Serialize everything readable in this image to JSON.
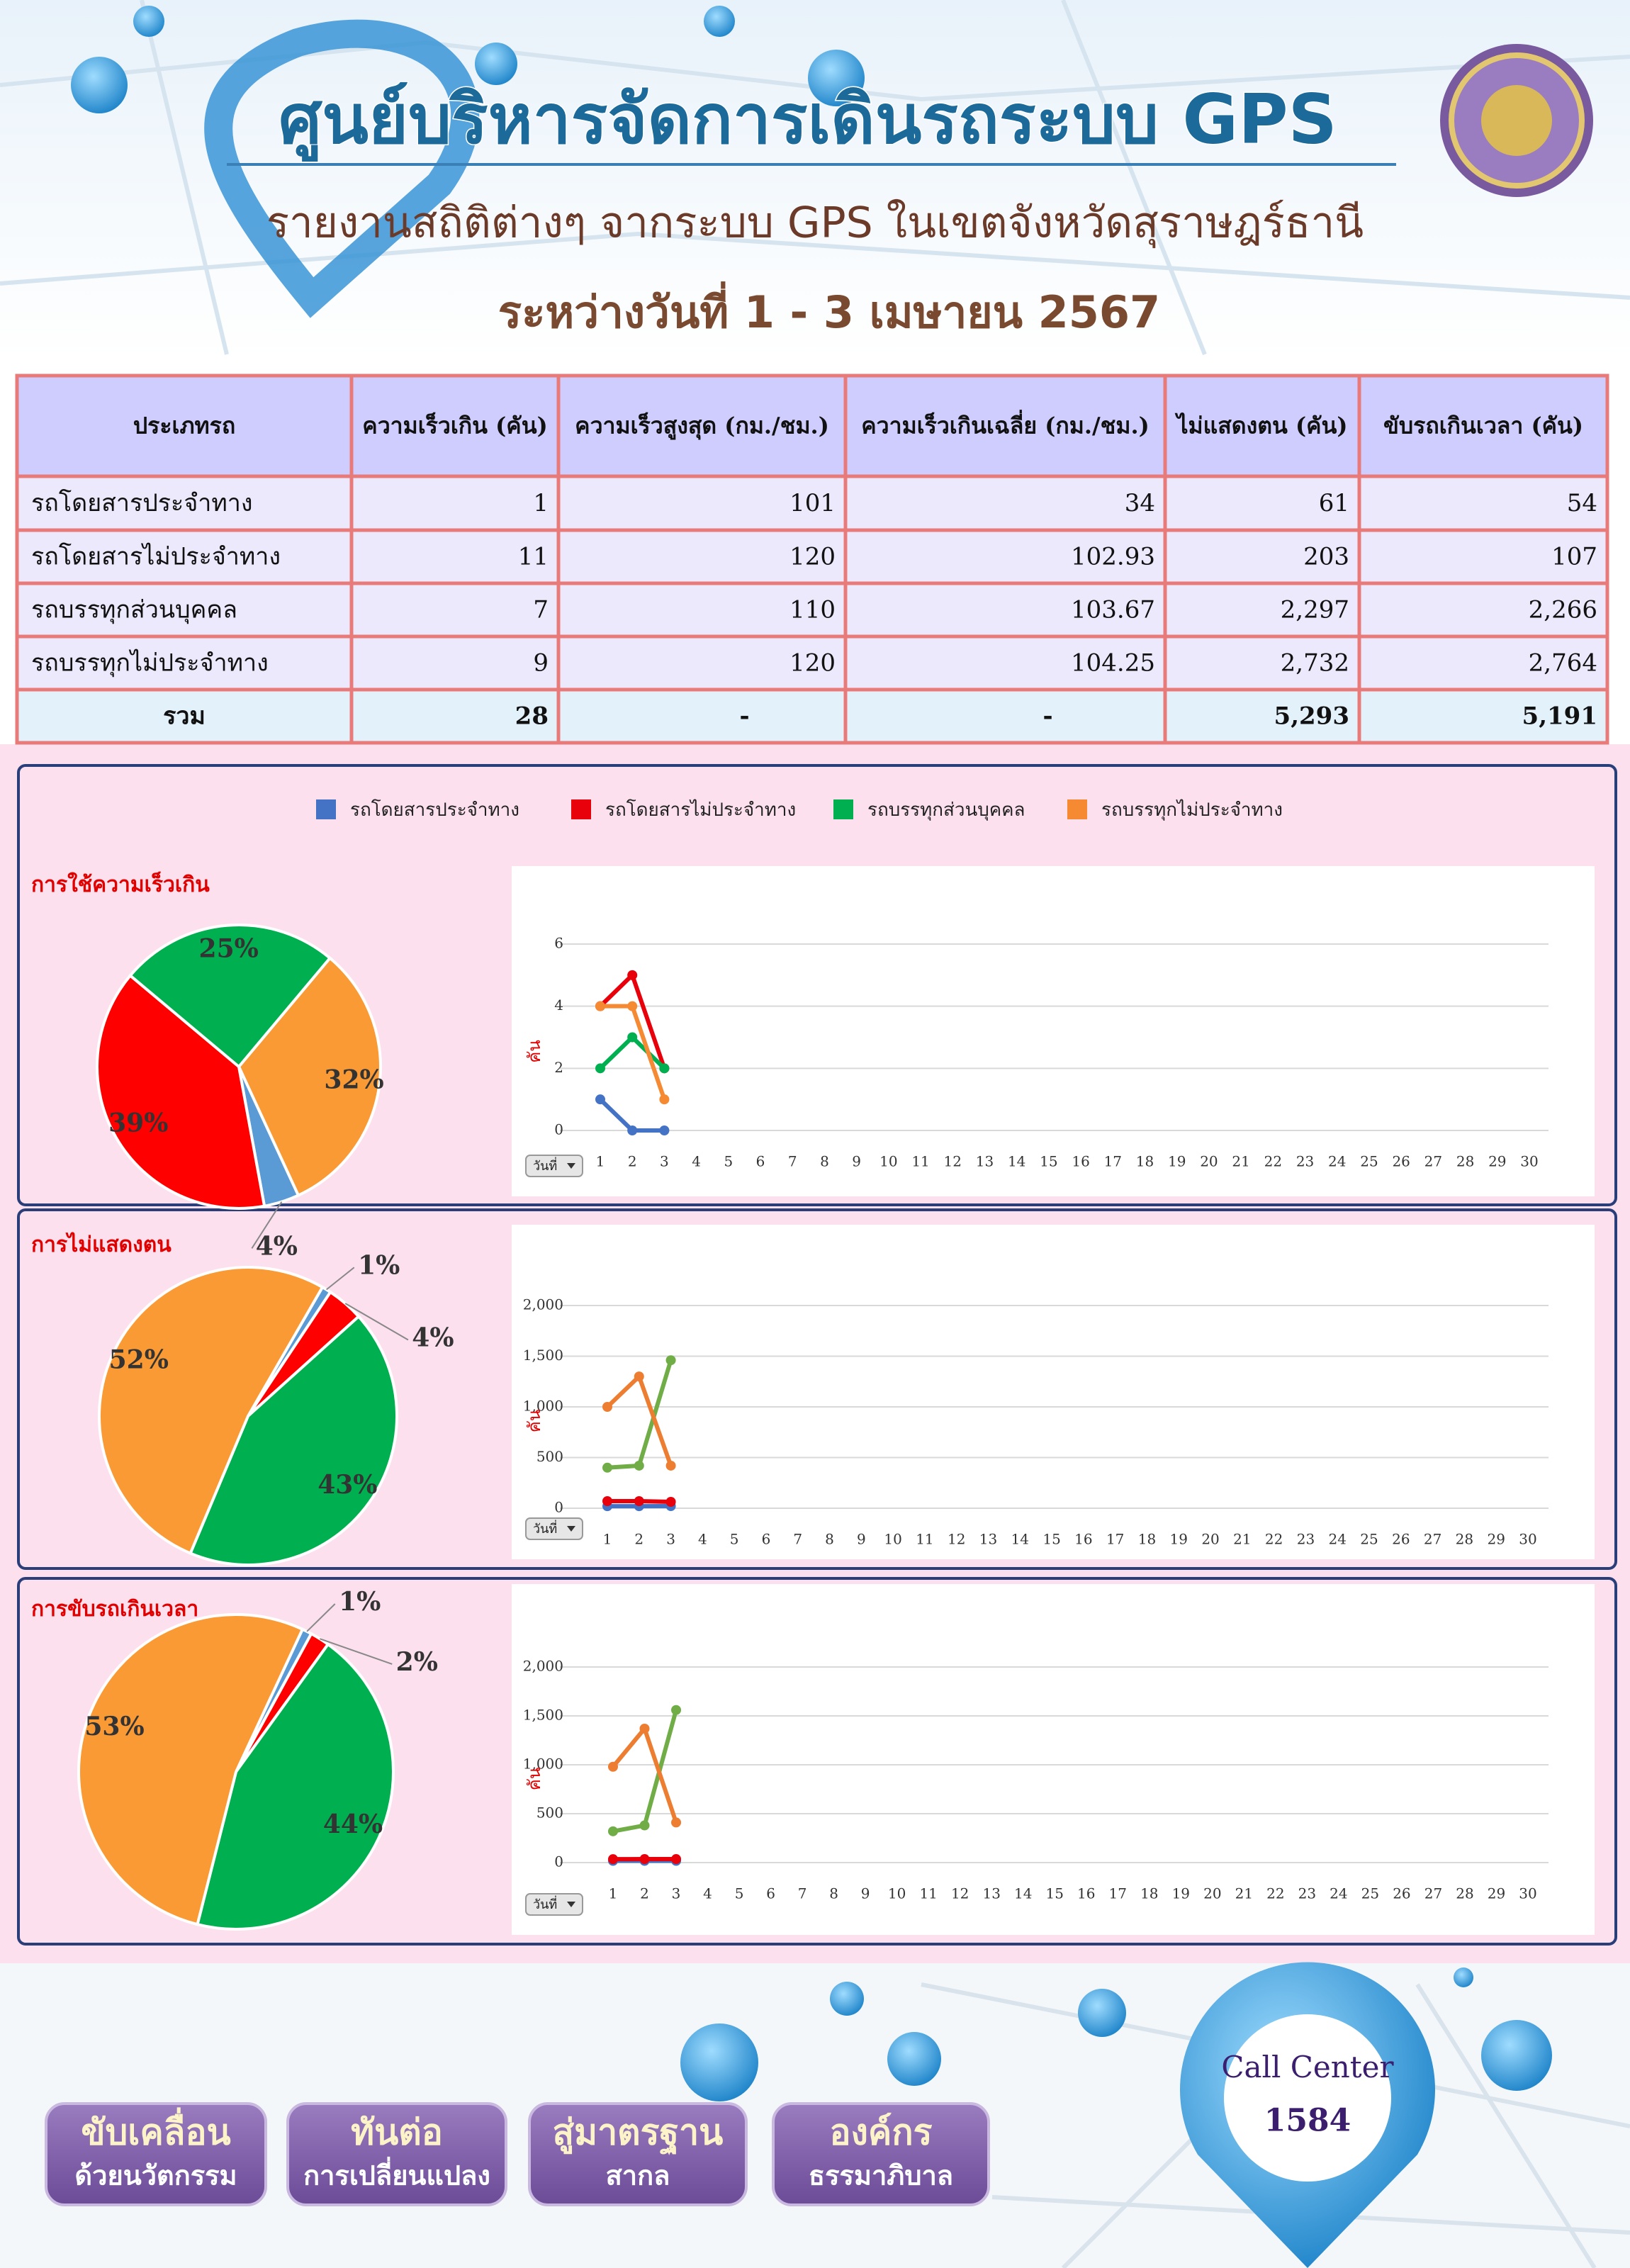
{
  "header": {
    "title": "ศูนย์บริหารจัดการเดินรถระบบ GPS",
    "subtitle": "รายงานสถิติต่างๆ จากระบบ GPS ในเขตจังหวัดสุราษฎร์ธานี",
    "date_range": "ระหว่างวันที่ 1 - 3 เมษายน 2567"
  },
  "table": {
    "columns": [
      "ประเภทรถ",
      "ความเร็วเกิน (คัน)",
      "ความเร็วสูงสุด (กม./ชม.)",
      "ความเร็วเกินเฉลี่ย (กม./ชม.)",
      "ไม่แสดงตน (คัน)",
      "ขับรถเกินเวลา (คัน)"
    ],
    "rows": [
      [
        "รถโดยสารประจำทาง",
        "1",
        "101",
        "34",
        "61",
        "54"
      ],
      [
        "รถโดยสารไม่ประจำทาง",
        "11",
        "120",
        "102.93",
        "203",
        "107"
      ],
      [
        "รถบรรทุกส่วนบุคคล",
        "7",
        "110",
        "103.67",
        "2,297",
        "2,266"
      ],
      [
        "รถบรรทุกไม่ประจำทาง",
        "9",
        "120",
        "104.25",
        "2,732",
        "2,764"
      ]
    ],
    "total": [
      "รวม",
      "28",
      "-",
      "-",
      "5,293",
      "5,191"
    ]
  },
  "chart_data": [
    {
      "type": "pie",
      "title": "การใช้ความเร็วเกิน",
      "values": [
        4,
        39,
        25,
        32
      ],
      "colors": [
        "#5b9bd5",
        "#ff0000",
        "#00b050",
        "#f99a35"
      ]
    },
    {
      "type": "line",
      "ylabel": "คัน",
      "x_selector": "วันที่",
      "x": [
        1,
        2,
        3,
        4,
        5,
        6,
        7,
        8,
        9,
        10,
        11,
        12,
        13,
        14,
        15,
        16,
        17,
        18,
        19,
        20,
        21,
        22,
        23,
        24,
        25,
        26,
        27,
        28,
        29,
        30
      ],
      "ylim": [
        0,
        6
      ],
      "yticks": [
        0,
        2,
        4,
        6
      ],
      "grid": true,
      "series": [
        {
          "name": "รถโดยสารประจำทาง",
          "color": "#4472c4",
          "values": [
            1,
            0,
            0,
            null,
            null,
            null,
            null,
            null,
            null,
            null,
            null,
            null,
            null,
            null,
            null,
            null,
            null,
            null,
            null,
            null,
            null,
            null,
            null,
            null,
            null,
            null,
            null,
            null,
            null,
            null
          ]
        },
        {
          "name": "รถโดยสารไม่ประจำทาง",
          "color": "#e8000b",
          "values": [
            4,
            5,
            2,
            null,
            null,
            null,
            null,
            null,
            null,
            null,
            null,
            null,
            null,
            null,
            null,
            null,
            null,
            null,
            null,
            null,
            null,
            null,
            null,
            null,
            null,
            null,
            null,
            null,
            null,
            null
          ]
        },
        {
          "name": "รถบรรทุกส่วนบุคคล",
          "color": "#00b050",
          "values": [
            2,
            3,
            2,
            null,
            null,
            null,
            null,
            null,
            null,
            null,
            null,
            null,
            null,
            null,
            null,
            null,
            null,
            null,
            null,
            null,
            null,
            null,
            null,
            null,
            null,
            null,
            null,
            null,
            null,
            null
          ]
        },
        {
          "name": "รถบรรทุกไม่ประจำทาง",
          "color": "#f58a33",
          "values": [
            4,
            4,
            1,
            null,
            null,
            null,
            null,
            null,
            null,
            null,
            null,
            null,
            null,
            null,
            null,
            null,
            null,
            null,
            null,
            null,
            null,
            null,
            null,
            null,
            null,
            null,
            null,
            null,
            null,
            null
          ]
        }
      ]
    },
    {
      "type": "pie",
      "title": "การไม่แสดงตน",
      "values": [
        1,
        4,
        43,
        52
      ],
      "colors": [
        "#5b9bd5",
        "#ff0000",
        "#00b050",
        "#f99a35"
      ]
    },
    {
      "type": "line",
      "ylabel": "คัน",
      "x_selector": "วันที่",
      "x": [
        1,
        2,
        3,
        4,
        5,
        6,
        7,
        8,
        9,
        10,
        11,
        12,
        13,
        14,
        15,
        16,
        17,
        18,
        19,
        20,
        21,
        22,
        23,
        24,
        25,
        26,
        27,
        28,
        29,
        30
      ],
      "ylim": [
        0,
        2000
      ],
      "yticks": [
        0,
        500,
        {
          "value": 1000,
          "label": "1,000"
        },
        {
          "value": 1500,
          "label": "1,500"
        },
        {
          "value": 2000,
          "label": "2,000"
        }
      ],
      "grid": true,
      "series": [
        {
          "color": "#4472c4",
          "values": [
            20,
            20,
            21,
            null,
            null,
            null,
            null,
            null,
            null,
            null,
            null,
            null,
            null,
            null,
            null,
            null,
            null,
            null,
            null,
            null,
            null,
            null,
            null,
            null,
            null,
            null,
            null,
            null,
            null,
            null
          ]
        },
        {
          "color": "#e8000b",
          "values": [
            70,
            70,
            63,
            null,
            null,
            null,
            null,
            null,
            null,
            null,
            null,
            null,
            null,
            null,
            null,
            null,
            null,
            null,
            null,
            null,
            null,
            null,
            null,
            null,
            null,
            null,
            null,
            null,
            null,
            null
          ]
        },
        {
          "color": "#70ad47",
          "values": [
            400,
            420,
            1460,
            null,
            null,
            null,
            null,
            null,
            null,
            null,
            null,
            null,
            null,
            null,
            null,
            null,
            null,
            null,
            null,
            null,
            null,
            null,
            null,
            null,
            null,
            null,
            null,
            null,
            null,
            null
          ]
        },
        {
          "color": "#ed7d31",
          "values": [
            1000,
            1300,
            420,
            null,
            null,
            null,
            null,
            null,
            null,
            null,
            null,
            null,
            null,
            null,
            null,
            null,
            null,
            null,
            null,
            null,
            null,
            null,
            null,
            null,
            null,
            null,
            null,
            null,
            null,
            null
          ]
        }
      ]
    },
    {
      "type": "pie",
      "title": "การขับรถเกินเวลา",
      "values": [
        1,
        2,
        44,
        53
      ],
      "colors": [
        "#5b9bd5",
        "#ff0000",
        "#00b050",
        "#f99a35"
      ]
    },
    {
      "type": "line",
      "ylabel": "คัน",
      "x_selector": "วันที่",
      "x": [
        1,
        2,
        3,
        4,
        5,
        6,
        7,
        8,
        9,
        10,
        11,
        12,
        13,
        14,
        15,
        16,
        17,
        18,
        19,
        20,
        21,
        22,
        23,
        24,
        25,
        26,
        27,
        28,
        29,
        30
      ],
      "ylim": [
        0,
        2000
      ],
      "yticks": [
        0,
        500,
        {
          "value": 1000,
          "label": "1,000"
        },
        {
          "value": 1500,
          "label": "1,500"
        },
        {
          "value": 2000,
          "label": "2,000"
        }
      ],
      "grid": true,
      "series": [
        {
          "color": "#4472c4",
          "values": [
            18,
            18,
            18,
            null,
            null,
            null,
            null,
            null,
            null,
            null,
            null,
            null,
            null,
            null,
            null,
            null,
            null,
            null,
            null,
            null,
            null,
            null,
            null,
            null,
            null,
            null,
            null,
            null,
            null,
            null
          ]
        },
        {
          "color": "#e8000b",
          "values": [
            35,
            36,
            36,
            null,
            null,
            null,
            null,
            null,
            null,
            null,
            null,
            null,
            null,
            null,
            null,
            null,
            null,
            null,
            null,
            null,
            null,
            null,
            null,
            null,
            null,
            null,
            null,
            null,
            null,
            null
          ]
        },
        {
          "color": "#70ad47",
          "values": [
            320,
            380,
            1560,
            null,
            null,
            null,
            null,
            null,
            null,
            null,
            null,
            null,
            null,
            null,
            null,
            null,
            null,
            null,
            null,
            null,
            null,
            null,
            null,
            null,
            null,
            null,
            null,
            null,
            null,
            null
          ]
        },
        {
          "color": "#ed7d31",
          "values": [
            980,
            1370,
            410,
            null,
            null,
            null,
            null,
            null,
            null,
            null,
            null,
            null,
            null,
            null,
            null,
            null,
            null,
            null,
            null,
            null,
            null,
            null,
            null,
            null,
            null,
            null,
            null,
            null,
            null,
            null
          ]
        }
      ]
    }
  ],
  "footer": {
    "buttons": [
      {
        "line1": "ขับเคลื่อน",
        "line2": "ด้วยนวัตกรรม"
      },
      {
        "line1": "ทันต่อ",
        "line2": "การเปลี่ยนแปลง"
      },
      {
        "line1": "สู่มาตรฐาน",
        "line2": "สากล"
      },
      {
        "line1": "องค์กร",
        "line2": "ธรรมาภิบาล"
      }
    ],
    "call_center": {
      "label": "Call Center",
      "number": "1584"
    }
  }
}
